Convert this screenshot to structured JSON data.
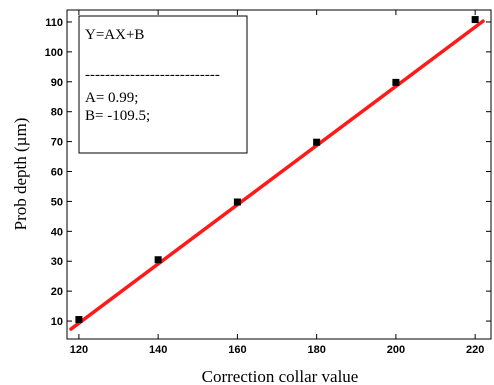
{
  "chart_data": {
    "type": "scatter",
    "xlabel": "Correction collar value",
    "ylabel": "Prob depth (µm)",
    "xlim": [
      117,
      224
    ],
    "ylim": [
      4,
      114
    ],
    "xticks": [
      120,
      140,
      160,
      180,
      200,
      220
    ],
    "yticks": [
      10,
      20,
      30,
      40,
      50,
      60,
      70,
      80,
      90,
      100,
      110
    ],
    "grid": false,
    "series": [
      {
        "marker": "square",
        "color": "#000000",
        "x": [
          120,
          140,
          160,
          180,
          200,
          220
        ],
        "y": [
          10.5,
          30.5,
          49.8,
          69.8,
          89.8,
          110.8
        ]
      }
    ],
    "fit_line": {
      "color": "#ff1a1a",
      "x_range": [
        118,
        222
      ],
      "slope": 0.99,
      "intercept": -109.5
    },
    "annotation": {
      "lines": [
        "Y=AX+B",
        "---------------------------",
        "A= 0.99;",
        "B= -109.5;"
      ]
    }
  }
}
